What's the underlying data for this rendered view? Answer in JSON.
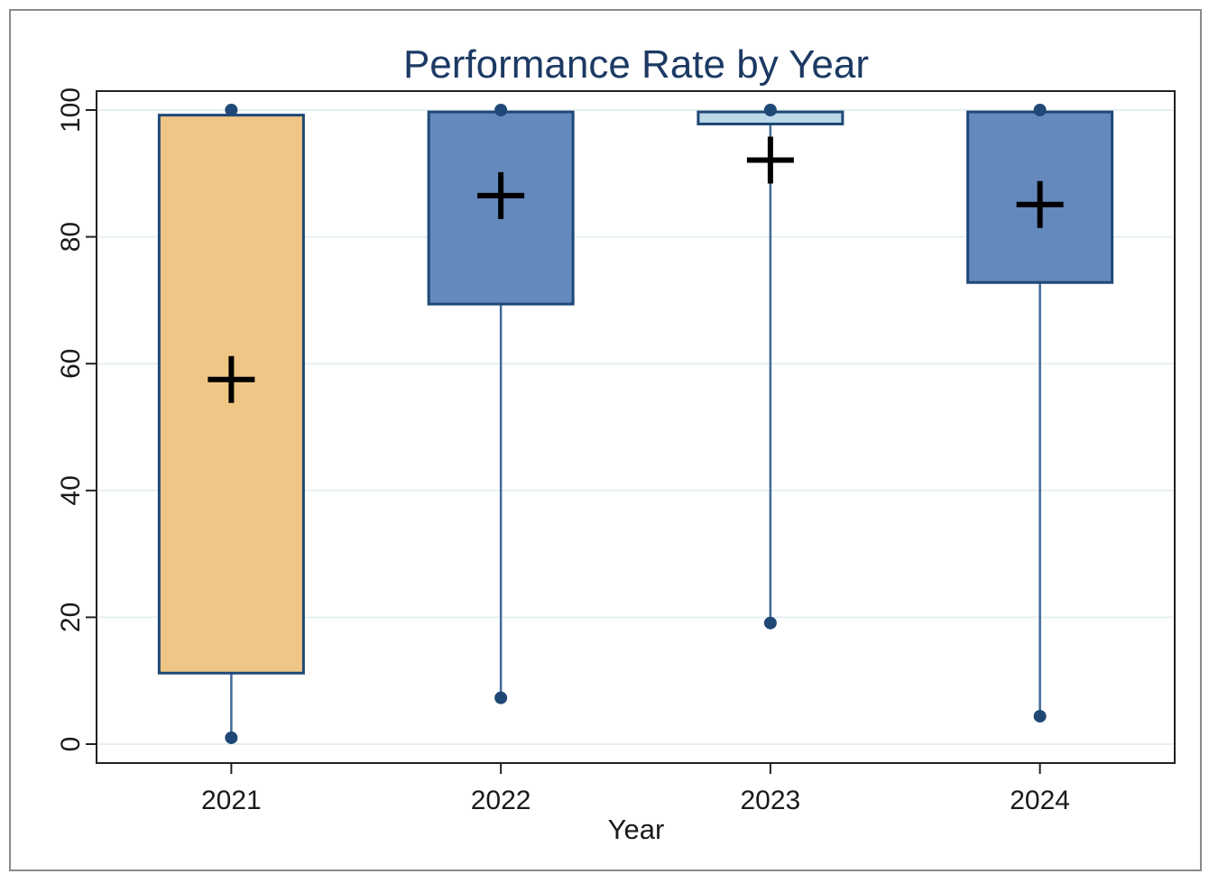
{
  "chart_data": {
    "type": "box",
    "title": "Performance Rate by Year",
    "xlabel": "Year",
    "ylabel": "",
    "ylim": [
      -3,
      103
    ],
    "yticks": [
      0,
      20,
      40,
      60,
      80,
      100
    ],
    "grid": true,
    "legend": "none",
    "categories": [
      "2021",
      "2022",
      "2023",
      "2024"
    ],
    "boxes": [
      {
        "category": "2021",
        "min": 1,
        "q1": 11.2,
        "median": null,
        "q3": 99.2,
        "max": 100,
        "mean": 57.5,
        "color": "#f0c686"
      },
      {
        "category": "2022",
        "min": 7.3,
        "q1": 69.4,
        "median": null,
        "q3": 99.7,
        "max": 100,
        "mean": 86.5,
        "color": "#6489bd"
      },
      {
        "category": "2023",
        "min": 19.1,
        "q1": 97.8,
        "median": null,
        "q3": 99.7,
        "max": 100,
        "mean": 92.1,
        "color": "#bcd9ea"
      },
      {
        "category": "2024",
        "min": 4.4,
        "q1": 72.8,
        "median": null,
        "q3": 99.7,
        "max": 100,
        "mean": 85.1,
        "color": "#6489bd"
      }
    ],
    "colors": {
      "outline": "#1f4876",
      "whisker": "#3f6a98",
      "mean_marker": "#000000",
      "gridline": "#e6f0f0",
      "title": "#1c3a63"
    }
  }
}
